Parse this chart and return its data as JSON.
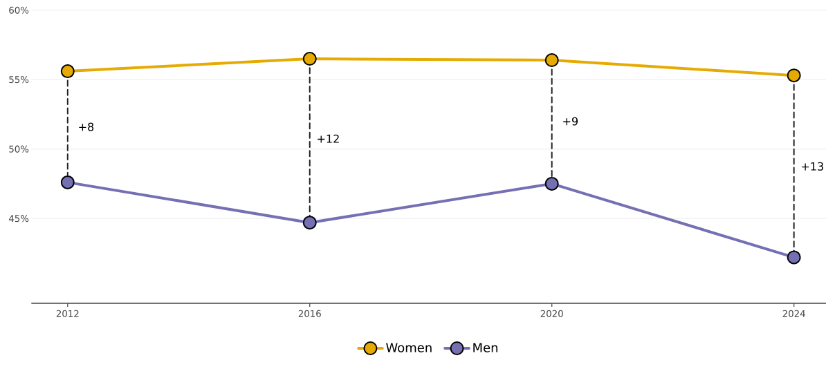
{
  "chart_data": {
    "type": "line",
    "x": [
      2012,
      2016,
      2020,
      2024
    ],
    "series": [
      {
        "name": "Women",
        "color": "#e6ab02",
        "values": [
          55.6,
          56.5,
          56.4,
          55.3
        ]
      },
      {
        "name": "Men",
        "color": "#7570b3",
        "values": [
          47.6,
          44.7,
          47.5,
          42.2
        ]
      },
      {
        "color": "#222222",
        "line_style": "dashed",
        "marker": "none",
        "x": [
          2012,
          2012
        ],
        "values": [
          55.6,
          47.6
        ]
      },
      {
        "color": "#222222",
        "line_style": "dashed",
        "marker": "none",
        "x": [
          2016,
          2016
        ],
        "values": [
          56.5,
          44.7
        ]
      },
      {
        "color": "#222222",
        "line_style": "dashed",
        "marker": "none",
        "x": [
          2020,
          2020
        ],
        "values": [
          56.4,
          47.5
        ]
      },
      {
        "color": "#222222",
        "line_style": "dashed",
        "marker": "none",
        "x": [
          2024,
          2024
        ],
        "values": [
          55.3,
          42.2
        ]
      }
    ],
    "annotations": [
      {
        "text": "+8",
        "x": 2012,
        "y": 51.6
      },
      {
        "text": "+12",
        "x": 2016,
        "y": 50.75
      },
      {
        "text": "+9",
        "x": 2020,
        "y": 52.0
      },
      {
        "text": "+13",
        "x": 2024,
        "y": 48.75
      }
    ],
    "xlim": [
      2011.4,
      2024.53
    ],
    "xticks": [
      2012,
      2016,
      2020,
      2024
    ],
    "ylim": [
      38.9,
      60
    ],
    "yticks": [
      {
        "value": 45,
        "label": "45%"
      },
      {
        "value": 50,
        "label": "50%"
      },
      {
        "value": 55,
        "label": "55%"
      },
      {
        "value": 60,
        "label": "60%"
      }
    ],
    "grid": "y",
    "legend": "bottom",
    "marker": "circle",
    "line_style": "solid"
  }
}
